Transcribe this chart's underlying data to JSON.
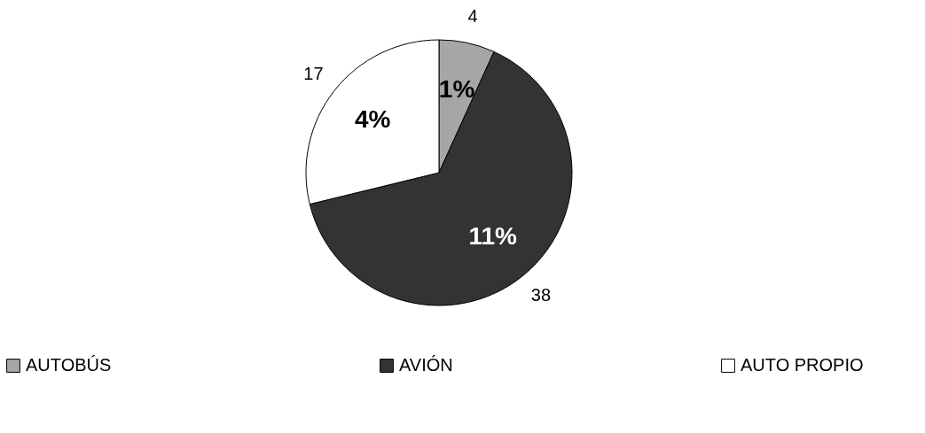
{
  "chart_data": {
    "type": "pie",
    "categories": [
      "AUTOBÚS",
      "AVIÓN",
      "AUTO PROPIO"
    ],
    "values": [
      4,
      38,
      17
    ],
    "colors": [
      "#a6a6a6",
      "#333333",
      "#ffffff"
    ],
    "value_labels": [
      "4",
      "38",
      "17"
    ],
    "annotations": [
      {
        "text": "1%",
        "x": "AUTOBÚS"
      },
      {
        "text": "11%",
        "x": "AVIÓN"
      },
      {
        "text": "4%",
        "x": "AUTO PROPIO"
      }
    ],
    "legend": "bottom"
  }
}
